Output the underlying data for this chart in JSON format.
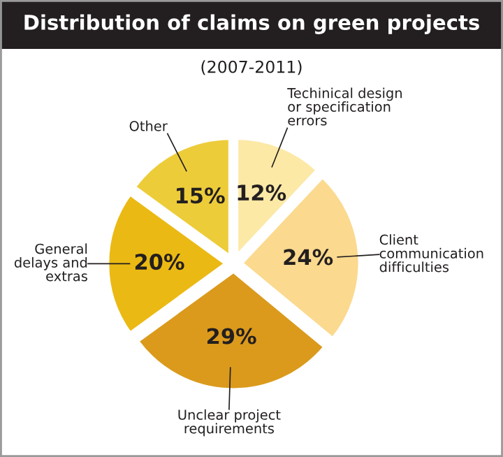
{
  "chart_data": {
    "type": "pie",
    "title": "Distribution of claims on green projects",
    "subtitle": "(2007-2011)",
    "categories": [
      "Techinical design\nor specification\nerrors",
      "Client\ncommunication\ndifficulties",
      "Unclear project\nrequirements",
      "General\ndelays and\nextras",
      "Other"
    ],
    "values": [
      12,
      24,
      29,
      20,
      15
    ],
    "value_labels": [
      "12%",
      "24%",
      "29%",
      "20%",
      "15%"
    ],
    "colors": [
      "#fce9a6",
      "#fbd98e",
      "#db9a1c",
      "#ebb913",
      "#edcc3a"
    ]
  }
}
